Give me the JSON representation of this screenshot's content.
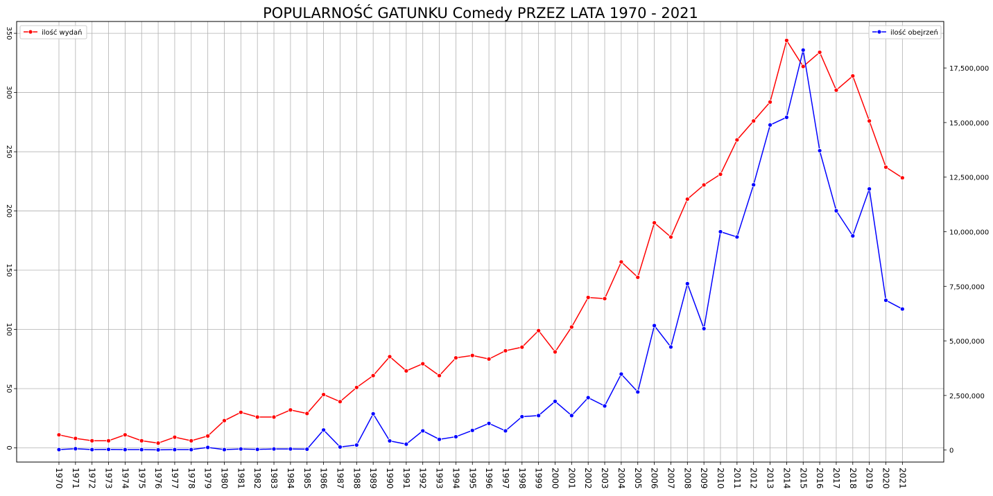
{
  "chart_data": {
    "type": "line",
    "title": "POPULARNOŚĆ GATUNKU Comedy PRZEZ LATA 1970 - 2021",
    "xlabel": "",
    "ylabel": "",
    "x": [
      "1970",
      "1971",
      "1972",
      "1973",
      "1974",
      "1975",
      "1976",
      "1977",
      "1978",
      "1979",
      "1980",
      "1981",
      "1982",
      "1983",
      "1984",
      "1985",
      "1986",
      "1987",
      "1988",
      "1989",
      "1990",
      "1991",
      "1992",
      "1993",
      "1994",
      "1995",
      "1996",
      "1997",
      "1998",
      "1999",
      "2000",
      "2001",
      "2002",
      "2003",
      "2004",
      "2005",
      "2006",
      "2007",
      "2008",
      "2009",
      "2010",
      "2011",
      "2012",
      "2013",
      "2014",
      "2015",
      "2016",
      "2017",
      "2018",
      "2019",
      "2020",
      "2021"
    ],
    "left_axis": {
      "ylim": [
        -12,
        360
      ],
      "ticks": [
        0,
        50,
        100,
        150,
        200,
        250,
        300,
        350
      ],
      "tick_labels": [
        "0",
        "50",
        "100",
        "150",
        "200",
        "250",
        "300",
        "350"
      ]
    },
    "right_axis": {
      "ylim": [
        -550000,
        19630000
      ],
      "ticks": [
        0,
        2500000,
        5000000,
        7500000,
        10000000,
        12500000,
        15000000,
        17500000
      ],
      "tick_labels": [
        "0",
        "2,500,000",
        "5,000,000",
        "7,500,000",
        "10,000,000",
        "12,500,000",
        "15,000,000",
        "17,500,000"
      ]
    },
    "grid": true,
    "series": [
      {
        "name": "ilość wydań",
        "axis": "left",
        "color": "#ff0000",
        "legend_position": "top-left",
        "values": [
          11,
          8,
          6,
          6,
          11,
          6,
          4,
          9,
          6,
          10,
          23,
          30,
          26,
          26,
          32,
          29,
          45,
          39,
          51,
          61,
          77,
          65,
          71,
          61,
          76,
          78,
          75,
          82,
          85,
          99,
          81,
          102,
          127,
          126,
          157,
          144,
          190,
          178,
          210,
          222,
          231,
          260,
          276,
          292,
          344,
          322,
          334,
          302,
          314,
          276,
          237,
          228
        ]
      },
      {
        "name": "ilość obejrzeń",
        "axis": "right",
        "color": "#0000ff",
        "legend_position": "top-right",
        "values": [
          20000,
          60000,
          20000,
          30000,
          20000,
          20000,
          10000,
          20000,
          20000,
          120000,
          20000,
          50000,
          30000,
          50000,
          50000,
          40000,
          920000,
          140000,
          230000,
          1660000,
          420000,
          270000,
          880000,
          490000,
          610000,
          900000,
          1220000,
          880000,
          1530000,
          1580000,
          2230000,
          1580000,
          2400000,
          2020000,
          3480000,
          2660000,
          5700000,
          4720000,
          7620000,
          5560000,
          10000000,
          9760000,
          12150000,
          14890000,
          15240000,
          18320000,
          13710000,
          10960000,
          9810000,
          11960000,
          6860000,
          6460000
        ]
      }
    ]
  }
}
